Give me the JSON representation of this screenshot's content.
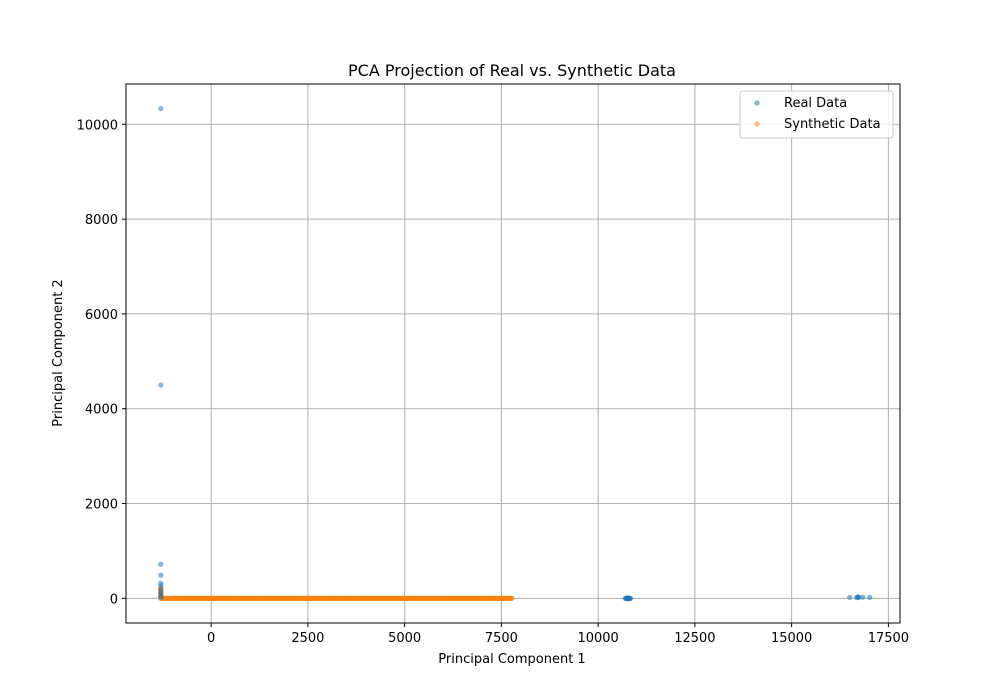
{
  "chart_data": {
    "type": "scatter",
    "title": "PCA Projection of Real vs. Synthetic Data",
    "xlabel": "Principal Component 1",
    "ylabel": "Principal Component 2",
    "xlim": [
      -2200,
      17800
    ],
    "ylim": [
      -520,
      10850
    ],
    "xticks": [
      0,
      2500,
      5000,
      7500,
      10000,
      12500,
      15000,
      17500
    ],
    "yticks": [
      0,
      2000,
      4000,
      6000,
      8000,
      10000
    ],
    "grid": true,
    "legend_position": "top-right",
    "series": [
      {
        "name": "Real Data",
        "color": "#1f77b4",
        "opacity": 0.55,
        "points": [
          [
            -1300,
            10330
          ],
          [
            -1300,
            4500
          ],
          [
            -1300,
            720
          ],
          [
            -1300,
            490
          ],
          [
            -1300,
            320
          ],
          [
            -1300,
            270
          ],
          [
            -1300,
            180
          ],
          [
            -1300,
            120
          ],
          [
            -1300,
            60
          ],
          [
            -1300,
            20
          ],
          [
            10700,
            0
          ],
          [
            10720,
            0
          ],
          [
            10740,
            0
          ],
          [
            10760,
            0
          ],
          [
            10780,
            0
          ],
          [
            10800,
            0
          ],
          [
            10820,
            0
          ],
          [
            10840,
            0
          ],
          [
            10740,
            10
          ],
          [
            10780,
            10
          ],
          [
            10800,
            -10
          ],
          [
            10760,
            -10
          ],
          [
            16500,
            20
          ],
          [
            16700,
            30
          ],
          [
            16720,
            25
          ],
          [
            16740,
            20
          ],
          [
            16840,
            25
          ],
          [
            17020,
            20
          ],
          [
            16680,
            15
          ]
        ]
      },
      {
        "name": "Synthetic Data",
        "color": "#ff7f0e",
        "opacity": 0.55,
        "points": []
      }
    ],
    "synthetic_line": {
      "x_start": -1300,
      "x_end": 7780,
      "y": 0,
      "left_cluster_ymax": 220
    }
  }
}
